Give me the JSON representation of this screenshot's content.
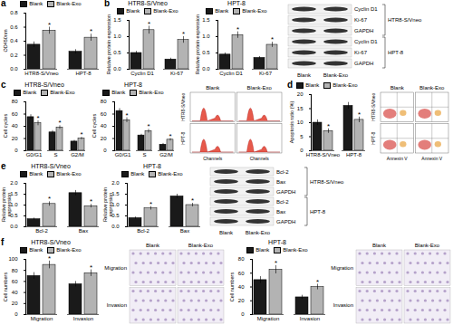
{
  "chart_data": [
    {
      "type": "bar",
      "panel_label": "a",
      "ylabel": "OD450nm",
      "legend": "top",
      "annotation": "*",
      "categories": [
        "HTR8-S/Vneo",
        "HPT-8"
      ],
      "series": [
        {
          "name": "Blank",
          "color": "#1a1a1a",
          "values": [
            0.35,
            0.25
          ],
          "errors": [
            0.04,
            0.03
          ]
        },
        {
          "name": "Blank-Exo",
          "color": "#b3b3b3",
          "values": [
            0.55,
            0.45
          ],
          "errors": [
            0.05,
            0.05
          ]
        }
      ],
      "ylim": [
        0,
        0.8
      ],
      "yticks": [
        {
          "value": 0,
          "label": "0.0"
        },
        0.2,
        0.4,
        0.6,
        0.8
      ]
    },
    {
      "type": "bar",
      "panel_label": "b",
      "title": "HTR8-S/Vneo",
      "ylabel": "Relative protein expression",
      "legend": "top",
      "annotation": "*",
      "categories": [
        "Cyclin D1",
        "Ki-67"
      ],
      "series": [
        {
          "name": "Blank",
          "color": "#1a1a1a",
          "values": [
            0.5,
            0.3
          ],
          "errors": [
            0.05,
            0.04
          ]
        },
        {
          "name": "Blank-Exo",
          "color": "#b3b3b3",
          "values": [
            1.2,
            0.9
          ],
          "errors": [
            0.12,
            0.1
          ]
        }
      ],
      "ylim": [
        0,
        1.5
      ],
      "yticks": [
        {
          "value": 0,
          "label": "0.0"
        },
        0.5,
        {
          "value": 1,
          "label": "1.0"
        },
        1.5
      ]
    },
    {
      "type": "bar",
      "title": "HPT-8",
      "ylabel": "Relative protein expression",
      "legend": "top",
      "annotation": "*",
      "categories": [
        "Cyclin D1",
        "Ki-67"
      ],
      "series": [
        {
          "name": "Blank",
          "color": "#1a1a1a",
          "values": [
            0.45,
            0.35
          ],
          "errors": [
            0.05,
            0.04
          ]
        },
        {
          "name": "Blank-Exo",
          "color": "#b3b3b3",
          "values": [
            1.05,
            0.75
          ],
          "errors": [
            0.1,
            0.08
          ]
        }
      ],
      "ylim": [
        0,
        1.5
      ],
      "yticks": [
        {
          "value": 0,
          "label": "0.0"
        },
        0.5,
        {
          "value": 1,
          "label": "1.0"
        },
        1.5
      ]
    },
    {
      "type": "bar",
      "panel_label": "c",
      "title": "HTR8-S/Vneo",
      "ylabel": "Cell cycles",
      "legend": "top",
      "annotation": "*",
      "categories": [
        "G0/G1",
        "S",
        "G2/M"
      ],
      "series": [
        {
          "name": "Blank",
          "color": "#1a1a1a",
          "values": [
            55,
            30,
            15
          ],
          "errors": [
            4,
            3,
            2
          ]
        },
        {
          "name": "Blank-Exo",
          "color": "#b3b3b3",
          "values": [
            45,
            38,
            20
          ],
          "errors": [
            4,
            3,
            2
          ]
        }
      ],
      "ylim": [
        0,
        80
      ],
      "yticks": [
        0,
        20,
        40,
        60,
        80
      ]
    },
    {
      "type": "bar",
      "title": "HPT-8",
      "ylabel": "Cell cycles",
      "legend": "top",
      "annotation": "*",
      "categories": [
        "G0/G1",
        "S",
        "G2/M"
      ],
      "series": [
        {
          "name": "Blank",
          "color": "#1a1a1a",
          "values": [
            65,
            25,
            10
          ],
          "errors": [
            4,
            2,
            2
          ]
        },
        {
          "name": "Blank-Exo",
          "color": "#b3b3b3",
          "values": [
            50,
            32,
            18
          ],
          "errors": [
            4,
            3,
            2
          ]
        }
      ],
      "ylim": [
        0,
        80
      ],
      "yticks": [
        0,
        20,
        40,
        60,
        80
      ]
    },
    {
      "type": "bar",
      "panel_label": "d",
      "ylabel": "Apoptosis ratio (%)",
      "legend": "top",
      "annotation": "*",
      "categories": [
        "HTR8-S/Vneo",
        "HPT-8"
      ],
      "series": [
        {
          "name": "Blank",
          "color": "#1a1a1a",
          "values": [
            10,
            16
          ],
          "errors": [
            1,
            1.2
          ]
        },
        {
          "name": "Blank-Exo",
          "color": "#b3b3b3",
          "values": [
            7,
            11
          ],
          "errors": [
            0.8,
            1
          ]
        }
      ],
      "ylim": [
        0,
        20
      ],
      "yticks": [
        0,
        5,
        10,
        15,
        20
      ]
    },
    {
      "type": "bar",
      "panel_label": "e",
      "title": "HTR8-S/Vneo",
      "ylabel": "Relative protein expression",
      "legend": "top",
      "annotation": "*",
      "categories": [
        "Bcl-2",
        "Bax"
      ],
      "series": [
        {
          "name": "Blank",
          "color": "#1a1a1a",
          "values": [
            0.35,
            1.55
          ],
          "errors": [
            0.05,
            0.12
          ]
        },
        {
          "name": "Blank-Exo",
          "color": "#b3b3b3",
          "values": [
            1.05,
            0.95
          ],
          "errors": [
            0.1,
            0.08
          ]
        }
      ],
      "ylim": [
        0,
        2
      ],
      "yticks": [
        {
          "value": 0,
          "label": "0.0"
        },
        0.5,
        {
          "value": 1,
          "label": "1.0"
        },
        1.5,
        {
          "value": 2,
          "label": "2.0"
        }
      ]
    },
    {
      "type": "bar",
      "title": "HPT-8",
      "ylabel": "Relative protein expression",
      "legend": "top",
      "annotation": "*",
      "categories": [
        "Bcl-2",
        "Bax"
      ],
      "series": [
        {
          "name": "Blank",
          "color": "#1a1a1a",
          "values": [
            0.4,
            1.4
          ],
          "errors": [
            0.05,
            0.1
          ]
        },
        {
          "name": "Blank-Exo",
          "color": "#b3b3b3",
          "values": [
            0.85,
            1.0
          ],
          "errors": [
            0.08,
            0.08
          ]
        }
      ],
      "ylim": [
        0,
        2
      ],
      "yticks": [
        {
          "value": 0,
          "label": "0.0"
        },
        0.5,
        {
          "value": 1,
          "label": "1.0"
        },
        1.5,
        {
          "value": 2,
          "label": "2.0"
        }
      ]
    },
    {
      "type": "bar",
      "panel_label": "f",
      "title": "HTR8-S/Vneo",
      "ylabel": "Cell numbers",
      "legend": "top",
      "annotation": "*",
      "categories": [
        "Migration",
        "Invasion"
      ],
      "series": [
        {
          "name": "Blank",
          "color": "#1a1a1a",
          "values": [
            70,
            55
          ],
          "errors": [
            6,
            5
          ]
        },
        {
          "name": "Blank-Exo",
          "color": "#b3b3b3",
          "values": [
            90,
            75
          ],
          "errors": [
            7,
            6
          ]
        }
      ],
      "ylim": [
        0,
        100
      ],
      "yticks": [
        0,
        20,
        40,
        60,
        80,
        100
      ]
    },
    {
      "type": "bar",
      "title": "HPT-8",
      "ylabel": "Cell numbers",
      "legend": "top",
      "annotation": "*",
      "categories": [
        "Migration",
        "Invasion"
      ],
      "series": [
        {
          "name": "Blank",
          "color": "#1a1a1a",
          "values": [
            50,
            25
          ],
          "errors": [
            5,
            3
          ]
        },
        {
          "name": "Blank-Exo",
          "color": "#b3b3b3",
          "values": [
            65,
            40
          ],
          "errors": [
            6,
            4
          ]
        }
      ],
      "ylim": [
        0,
        80
      ],
      "yticks": [
        0,
        20,
        40,
        60,
        80
      ]
    }
  ],
  "images": [
    {
      "kind": "blot",
      "rows": [
        "Cyclin D1",
        "Ki-67",
        "GAPDH",
        "Cyclin D1",
        "Ki-67",
        "GAPDH"
      ],
      "groups": [
        "HTR8-S/Vneo",
        "HPT-8"
      ],
      "lanes": [
        "Blank",
        "Blank-Exo"
      ]
    },
    {
      "kind": "histogram",
      "columns": [
        "Blank",
        "Blank-Exo"
      ],
      "rows": [
        "HTR8-S/Vneo",
        "HPT-8"
      ],
      "xlabel": "Channels"
    },
    {
      "kind": "dotplot",
      "columns": [
        "Blank",
        "Blank-Exo"
      ],
      "rows": [
        "HTR8-S/Vneo",
        "HPT-8"
      ],
      "xlabel": "Annexin V"
    },
    {
      "kind": "blot",
      "rows": [
        "Bcl-2",
        "Bax",
        "GAPDH",
        "Bcl-2",
        "Bax",
        "GAPDH"
      ],
      "groups": [
        "HTR8-S/Vneo",
        "HPT-8"
      ],
      "lanes": [
        "Blank",
        "Blank-Exo"
      ]
    },
    {
      "kind": "micrograph",
      "rows": [
        "Migration",
        "Invasion"
      ],
      "columns": [
        "Blank",
        "Blank-Exo"
      ]
    },
    {
      "kind": "micrograph",
      "rows": [
        "Migration",
        "Invasion"
      ],
      "columns": [
        "Blank",
        "Blank-Exo"
      ]
    }
  ]
}
